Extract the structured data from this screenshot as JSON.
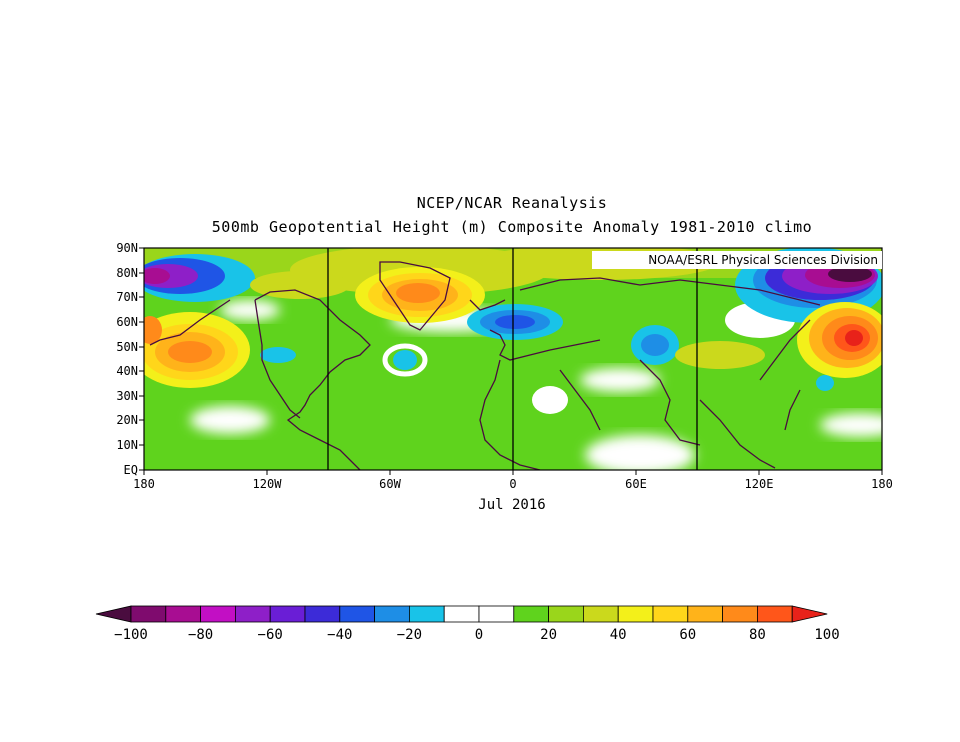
{
  "title": "NCEP/NCAR Reanalysis",
  "subtitle": "500mb Geopotential Height (m) Composite Anomaly 1981-2010 climo",
  "credit": "NOAA/ESRL Physical Sciences Division",
  "date_label": "Jul 2016",
  "lat_ticks": [
    "90N",
    "80N",
    "70N",
    "60N",
    "50N",
    "40N",
    "30N",
    "20N",
    "10N",
    "EQ"
  ],
  "lon_ticks": [
    "180",
    "120W",
    "60W",
    "0",
    "60E",
    "120E",
    "180"
  ],
  "colorbar": {
    "tick_labels": [
      "-100",
      "-80",
      "-60",
      "-40",
      "-20",
      "0",
      "20",
      "40",
      "60",
      "80",
      "100"
    ],
    "colors": [
      "#4a0c3f",
      "#7f0b6e",
      "#a80d92",
      "#c20fc4",
      "#8e1fc8",
      "#6a1ed6",
      "#3c2bd8",
      "#1f55e6",
      "#1e8ee6",
      "#19c3e8",
      "#ffffff",
      "#ffffff",
      "#5fd31d",
      "#9ad61b",
      "#cbd91c",
      "#f3f01a",
      "#ffd61a",
      "#ffb31a",
      "#ff8a1a",
      "#ff561a",
      "#e8221a"
    ]
  },
  "map": {
    "anomaly_centers": [
      {
        "name": "arctic-north-pacific-low",
        "lon": -170,
        "lat": 80,
        "value": -80
      },
      {
        "name": "greenland-high",
        "lon": -45,
        "lat": 73,
        "value": 85
      },
      {
        "name": "north-sea-low",
        "lon": 5,
        "lat": 62,
        "value": -45
      },
      {
        "name": "central-asia-low",
        "lon": 70,
        "lat": 50,
        "value": -35
      },
      {
        "name": "east-siberia-low",
        "lon": 145,
        "lat": 80,
        "value": -95
      },
      {
        "name": "kamchatka-high",
        "lon": 162,
        "lat": 56,
        "value": 100
      },
      {
        "name": "north-pacific-high",
        "lon": -150,
        "lat": 50,
        "value": 70
      },
      {
        "name": "hudson-low",
        "lon": -100,
        "lat": 48,
        "value": -25
      },
      {
        "name": "atlantic-low",
        "lon": -60,
        "lat": 45,
        "value": -20
      }
    ]
  }
}
